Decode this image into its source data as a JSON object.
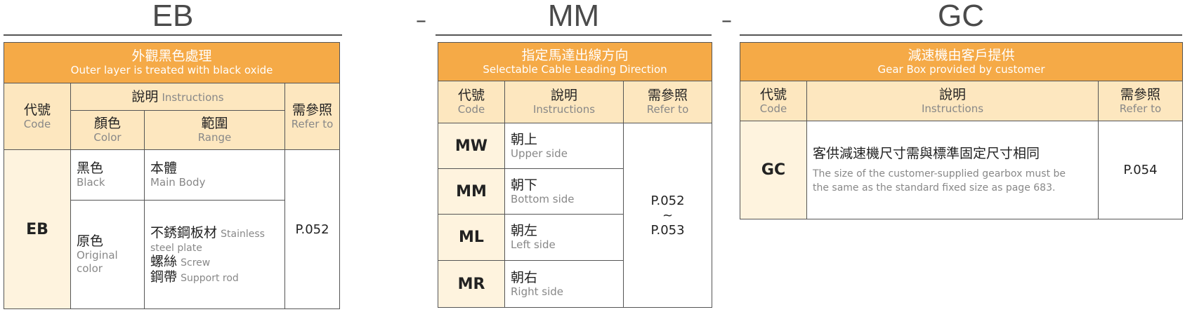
{
  "eb": {
    "title": "EB",
    "head_zh": "外觀黑色處理",
    "head_en": "Outer layer is treated with black oxide",
    "code_zh": "代號",
    "code_en": "Code",
    "instr_zh": "說明",
    "instr_en": "Instructions",
    "ref_zh": "需參照",
    "ref_en": "Refer to",
    "color_zh": "顏色",
    "color_en": "Color",
    "range_zh": "範圍",
    "range_en": "Range",
    "code": "EB",
    "ref": "P.052",
    "rows": [
      {
        "color_zh": "黑色",
        "color_en": "Black",
        "items": [
          {
            "zh": "本體",
            "en": "Main Body"
          }
        ]
      },
      {
        "color_zh": "原色",
        "color_en": "Original color",
        "items": [
          {
            "zh": "不銹鋼板材",
            "en": "Stainless steel plate"
          },
          {
            "zh": "螺絲",
            "en": "Screw"
          },
          {
            "zh": "鋼帶",
            "en": "Support rod"
          }
        ]
      }
    ]
  },
  "sep": "–",
  "mm": {
    "title": "MM",
    "head_zh": "指定馬達出線方向",
    "head_en": "Selectable Cable Leading Direction",
    "code_zh": "代號",
    "code_en": "Code",
    "instr_zh": "說明",
    "instr_en": "Instructions",
    "ref_zh": "需參照",
    "ref_en": "Refer to",
    "ref_from": "P.052",
    "ref_tilde": "~",
    "ref_to": "P.053",
    "rows": [
      {
        "code": "MW",
        "zh": "朝上",
        "en": "Upper side"
      },
      {
        "code": "MM",
        "zh": "朝下",
        "en": "Bottom side"
      },
      {
        "code": "ML",
        "zh": "朝左",
        "en": "Left side"
      },
      {
        "code": "MR",
        "zh": "朝右",
        "en": "Right side"
      }
    ]
  },
  "gc": {
    "title": "GC",
    "head_zh": "減速機由客戶提供",
    "head_en": "Gear Box provided by customer",
    "code_zh": "代號",
    "code_en": "Code",
    "instr_zh": "說明",
    "instr_en": "Instructions",
    "ref_zh": "需參照",
    "ref_en": "Refer to",
    "code": "GC",
    "desc_zh": "客供減速機尺寸需與標準固定尺寸相同",
    "desc_en": "The size of the customer-supplied gearbox must be the same as the standard fixed size as page 683.",
    "ref": "P.054"
  },
  "colors": {
    "header": "#f5aa47",
    "subheader": "#fde7bf",
    "code_cell": "#fef3de"
  }
}
